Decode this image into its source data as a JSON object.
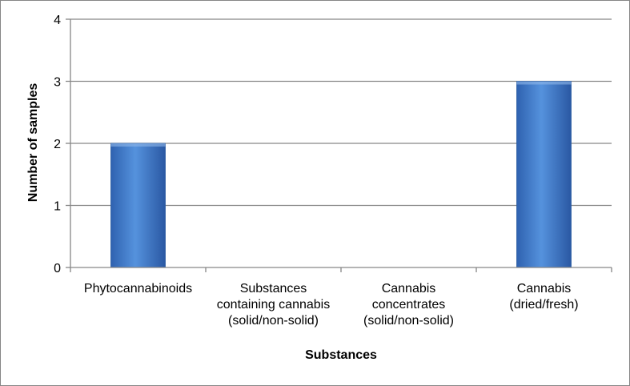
{
  "chart_data": {
    "type": "bar",
    "title": "",
    "xlabel": "Substances",
    "ylabel": "Number of samples",
    "categories": [
      [
        "Phytocannabinoids"
      ],
      [
        "Substances",
        "containing cannabis",
        "(solid/non-solid)"
      ],
      [
        "Cannabis",
        "concentrates",
        "(solid/non-solid)"
      ],
      [
        "Cannabis",
        "(dried/fresh)"
      ]
    ],
    "series": [
      {
        "values": [
          2,
          0,
          0,
          3
        ]
      }
    ],
    "ylim": [
      0,
      4
    ],
    "yticks": [
      0,
      1,
      2,
      3,
      4
    ],
    "grid": true,
    "legend": "none",
    "colors": {
      "bar": "#4a86d4",
      "bar_dark": "#2a5aa0",
      "grid": "#868686"
    }
  }
}
